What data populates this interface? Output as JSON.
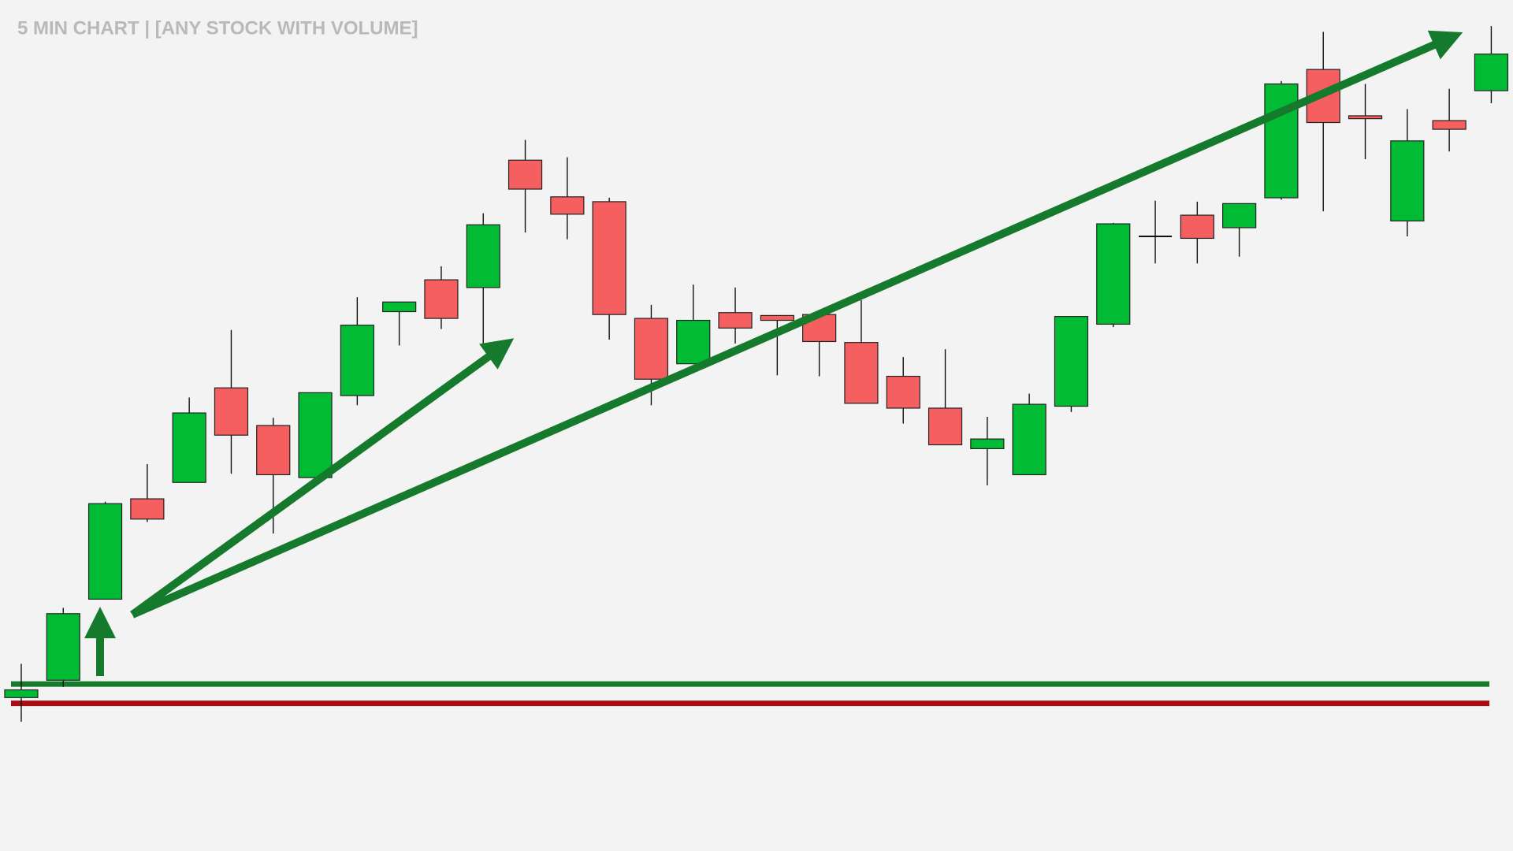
{
  "chart_data": {
    "type": "candlestick",
    "title": "5 MIN CHART  |  [ANY STOCK WITH VOLUME]",
    "open": [
      159,
      177,
      261,
      365,
      382,
      480,
      441,
      387,
      472,
      559,
      592,
      584,
      716,
      678,
      673,
      552,
      505,
      558,
      555,
      556,
      527,
      492,
      459,
      417,
      390,
      461,
      546,
      637,
      659,
      646,
      677,
      810,
      762,
      653,
      757,
      788
    ],
    "high": [
      194,
      252,
      362,
      401,
      470,
      540,
      449,
      475,
      574,
      569,
      606,
      661,
      737,
      719,
      677,
      566,
      587,
      584,
      555,
      556,
      571,
      512,
      520,
      450,
      474,
      554,
      651,
      674,
      673,
      671,
      798,
      849,
      795,
      769,
      790,
      855
    ],
    "low": [
      134,
      170,
      261,
      341,
      382,
      391,
      329,
      385,
      462,
      524,
      541,
      520,
      641,
      634,
      530,
      462,
      505,
      526,
      493,
      492,
      464,
      443,
      421,
      379,
      390,
      455,
      543,
      609,
      609,
      616,
      675,
      663,
      717,
      637,
      725,
      775
    ],
    "close": [
      167,
      246,
      360,
      344,
      454,
      431,
      390,
      475,
      545,
      569,
      552,
      649,
      686,
      660,
      556,
      489,
      550,
      542,
      550,
      528,
      464,
      459,
      421,
      427,
      463,
      554,
      650,
      637,
      635,
      671,
      795,
      755,
      759,
      736,
      748,
      826
    ],
    "up_color": "#00bb33",
    "down_color": "#f55f5f",
    "doji_color": "#111111",
    "levels": [
      {
        "value": 173,
        "color": "#157a2c"
      },
      {
        "value": 153,
        "color": "#a80c12"
      }
    ],
    "ylim": [
      0,
      882
    ]
  }
}
